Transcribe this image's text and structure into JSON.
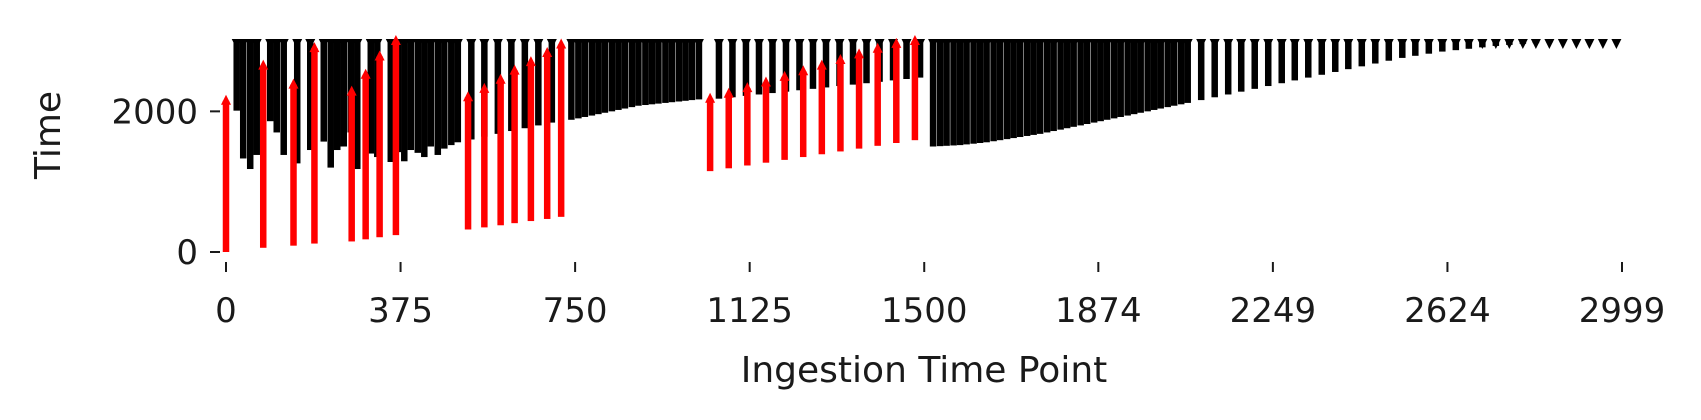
{
  "chart_data": {
    "type": "bar",
    "description_kind": "event time spans vs ingestion time point (floating vertical bars with arrowhead markers)",
    "xlabel": "Ingestion Time Point",
    "ylabel": "Time",
    "xlim": [
      0,
      2999
    ],
    "ylim": [
      0,
      3100
    ],
    "x_ticks": [
      0,
      375,
      750,
      1125,
      1500,
      1874,
      2249,
      2624,
      2999
    ],
    "x_tick_labels": [
      "0",
      "375",
      "750",
      "1125",
      "1500",
      "1874",
      "2249",
      "2624",
      "2999"
    ],
    "y_ticks": [
      0,
      2000
    ],
    "y_tick_labels": [
      "0",
      "2000"
    ],
    "grid": false,
    "legend": "none",
    "colors": {
      "normal": "#000000",
      "highlight": "#ff0000"
    },
    "marker_top": 3000,
    "series": [
      {
        "color": "#000000",
        "values": [
          [
            23,
            2010,
            3000
          ],
          [
            37,
            1330,
            3000
          ],
          [
            52,
            1180,
            3000
          ],
          [
            66,
            1380,
            3000
          ],
          [
            95,
            1860,
            3000
          ],
          [
            109,
            1700,
            3000
          ],
          [
            124,
            1380,
            3000
          ],
          [
            153,
            1260,
            3000
          ],
          [
            181,
            1450,
            3000
          ],
          [
            210,
            1570,
            3000
          ],
          [
            225,
            1200,
            3000
          ],
          [
            239,
            1450,
            3000
          ],
          [
            253,
            1500,
            3000
          ],
          [
            268,
            1700,
            3000
          ],
          [
            282,
            1180,
            3000
          ],
          [
            311,
            1400,
            3000
          ],
          [
            325,
            1350,
            3000
          ],
          [
            354,
            1280,
            3000
          ],
          [
            369,
            1420,
            3000
          ],
          [
            383,
            1290,
            3000
          ],
          [
            397,
            1450,
            3000
          ],
          [
            412,
            1410,
            3000
          ],
          [
            426,
            1350,
            3000
          ],
          [
            440,
            1500,
            3000
          ],
          [
            455,
            1380,
            3000
          ],
          [
            469,
            1470,
            3000
          ],
          [
            484,
            1520,
            3000
          ],
          [
            498,
            1560,
            3000
          ],
          [
            527,
            1600,
            3000
          ],
          [
            555,
            1640,
            3000
          ],
          [
            584,
            1680,
            3000
          ],
          [
            613,
            1720,
            3000
          ],
          [
            642,
            1760,
            3000
          ],
          [
            671,
            1800,
            3000
          ],
          [
            700,
            1840,
            3000
          ],
          [
            742,
            1880,
            3000
          ],
          [
            757,
            1900,
            3000
          ],
          [
            771,
            1920,
            3000
          ],
          [
            786,
            1940,
            3000
          ],
          [
            800,
            1960,
            3000
          ],
          [
            814,
            1980,
            3000
          ],
          [
            829,
            2000,
            3000
          ],
          [
            843,
            2020,
            3000
          ],
          [
            857,
            2040,
            3000
          ],
          [
            872,
            2060,
            3000
          ],
          [
            886,
            2080,
            3000
          ],
          [
            901,
            2090,
            3000
          ],
          [
            915,
            2100,
            3000
          ],
          [
            929,
            2110,
            3000
          ],
          [
            944,
            2120,
            3000
          ],
          [
            958,
            2130,
            3000
          ],
          [
            973,
            2140,
            3000
          ],
          [
            987,
            2150,
            3000
          ],
          [
            1001,
            2160,
            3000
          ],
          [
            1016,
            2170,
            3000
          ],
          [
            1059,
            2180,
            3000
          ],
          [
            1088,
            2200,
            3000
          ],
          [
            1117,
            2220,
            3000
          ],
          [
            1145,
            2240,
            3000
          ],
          [
            1174,
            2260,
            3000
          ],
          [
            1203,
            2280,
            3000
          ],
          [
            1232,
            2300,
            3000
          ],
          [
            1261,
            2320,
            3000
          ],
          [
            1289,
            2340,
            3000
          ],
          [
            1318,
            2360,
            3000
          ],
          [
            1347,
            2380,
            3000
          ],
          [
            1376,
            2400,
            3000
          ],
          [
            1404,
            2420,
            3000
          ],
          [
            1433,
            2440,
            3000
          ],
          [
            1462,
            2460,
            3000
          ],
          [
            1491,
            2480,
            3000
          ],
          [
            1519,
            1500,
            3000
          ],
          [
            1534,
            1505,
            3000
          ],
          [
            1548,
            1510,
            3000
          ],
          [
            1563,
            1515,
            3000
          ],
          [
            1577,
            1520,
            3000
          ],
          [
            1591,
            1530,
            3000
          ],
          [
            1606,
            1540,
            3000
          ],
          [
            1620,
            1550,
            3000
          ],
          [
            1634,
            1560,
            3000
          ],
          [
            1649,
            1575,
            3000
          ],
          [
            1663,
            1590,
            3000
          ],
          [
            1678,
            1605,
            3000
          ],
          [
            1692,
            1620,
            3000
          ],
          [
            1706,
            1635,
            3000
          ],
          [
            1721,
            1650,
            3000
          ],
          [
            1735,
            1665,
            3000
          ],
          [
            1749,
            1680,
            3000
          ],
          [
            1764,
            1700,
            3000
          ],
          [
            1778,
            1720,
            3000
          ],
          [
            1793,
            1740,
            3000
          ],
          [
            1807,
            1760,
            3000
          ],
          [
            1821,
            1780,
            3000
          ],
          [
            1836,
            1800,
            3000
          ],
          [
            1850,
            1820,
            3000
          ],
          [
            1865,
            1840,
            3000
          ],
          [
            1879,
            1860,
            3000
          ],
          [
            1893,
            1880,
            3000
          ],
          [
            1908,
            1900,
            3000
          ],
          [
            1922,
            1920,
            3000
          ],
          [
            1937,
            1940,
            3000
          ],
          [
            1951,
            1960,
            3000
          ],
          [
            1965,
            1980,
            3000
          ],
          [
            1980,
            2000,
            3000
          ],
          [
            1994,
            2020,
            3000
          ],
          [
            2008,
            2040,
            3000
          ],
          [
            2023,
            2060,
            3000
          ],
          [
            2037,
            2080,
            3000
          ],
          [
            2052,
            2100,
            3000
          ],
          [
            2066,
            2120,
            3000
          ],
          [
            2095,
            2160,
            3000
          ],
          [
            2124,
            2200,
            3000
          ],
          [
            2153,
            2240,
            3000
          ],
          [
            2181,
            2280,
            3000
          ],
          [
            2210,
            2320,
            3000
          ],
          [
            2239,
            2360,
            3000
          ],
          [
            2268,
            2400,
            3000
          ],
          [
            2296,
            2440,
            3000
          ],
          [
            2325,
            2480,
            3000
          ],
          [
            2354,
            2520,
            3000
          ],
          [
            2383,
            2560,
            3000
          ],
          [
            2411,
            2600,
            3000
          ],
          [
            2440,
            2640,
            3000
          ],
          [
            2469,
            2680,
            3000
          ],
          [
            2498,
            2720,
            3000
          ],
          [
            2527,
            2760,
            3000
          ],
          [
            2555,
            2790,
            3000
          ],
          [
            2584,
            2820,
            3000
          ],
          [
            2613,
            2850,
            3000
          ],
          [
            2642,
            2870,
            3000
          ],
          [
            2670,
            2890,
            3000
          ],
          [
            2699,
            2910,
            3000
          ],
          [
            2728,
            2930,
            3000
          ],
          [
            2757,
            2945,
            3000
          ],
          [
            2786,
            2960,
            3000
          ],
          [
            2814,
            2970,
            3000
          ],
          [
            2843,
            2980,
            3000
          ],
          [
            2872,
            2988,
            3000
          ],
          [
            2901,
            2994,
            3000
          ],
          [
            2929,
            2998,
            3000
          ],
          [
            2958,
            3000,
            3000
          ],
          [
            2987,
            3000,
            3000
          ]
        ]
      },
      {
        "color": "#ff0000",
        "values": [
          [
            0,
            0,
            2150
          ],
          [
            80,
            60,
            2650
          ],
          [
            145,
            90,
            2380
          ],
          [
            190,
            120,
            2900
          ],
          [
            270,
            150,
            2280
          ],
          [
            300,
            180,
            2520
          ],
          [
            330,
            210,
            2780
          ],
          [
            365,
            240,
            3000
          ],
          [
            520,
            320,
            2200
          ],
          [
            555,
            350,
            2320
          ],
          [
            590,
            380,
            2450
          ],
          [
            620,
            410,
            2580
          ],
          [
            655,
            440,
            2700
          ],
          [
            690,
            470,
            2830
          ],
          [
            720,
            500,
            2950
          ],
          [
            1040,
            1150,
            2180
          ],
          [
            1080,
            1190,
            2250
          ],
          [
            1120,
            1230,
            2330
          ],
          [
            1160,
            1270,
            2410
          ],
          [
            1200,
            1310,
            2490
          ],
          [
            1240,
            1350,
            2570
          ],
          [
            1280,
            1390,
            2650
          ],
          [
            1320,
            1430,
            2730
          ],
          [
            1360,
            1470,
            2810
          ],
          [
            1400,
            1510,
            2890
          ],
          [
            1440,
            1550,
            2960
          ],
          [
            1480,
            1590,
            3000
          ]
        ]
      }
    ]
  }
}
